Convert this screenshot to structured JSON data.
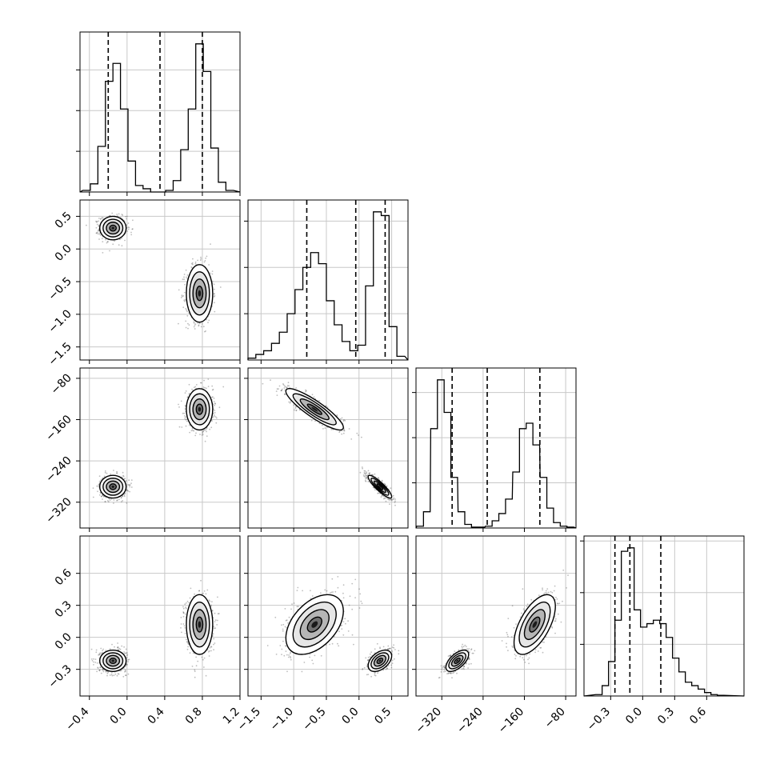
{
  "chart_data": {
    "type": "corner",
    "n_params": 4,
    "colors": {
      "hist": "#000000",
      "grid": "#c8c8c8",
      "points": "#444444",
      "contour": "#000000"
    },
    "params": [
      {
        "range": [
          -0.5,
          1.2
        ],
        "ticks": [
          -0.4,
          0.0,
          0.4,
          0.8,
          1.2
        ],
        "tick_labels": [
          "−0.4",
          "0.0",
          "0.4",
          "0.8",
          "1.2"
        ],
        "quantiles": [
          -0.2,
          0.35,
          0.8
        ],
        "hist": {
          "centers": [
            -0.43,
            -0.35,
            -0.27,
            -0.19,
            -0.11,
            -0.03,
            0.05,
            0.13,
            0.21,
            0.29,
            0.37,
            0.45,
            0.53,
            0.61,
            0.69,
            0.77,
            0.85,
            0.93,
            1.01,
            1.09
          ],
          "counts": [
            0.01,
            0.05,
            0.28,
            0.68,
            0.79,
            0.51,
            0.19,
            0.04,
            0.02,
            0.0,
            0.0,
            0.01,
            0.07,
            0.26,
            0.51,
            0.91,
            0.74,
            0.27,
            0.06,
            0.01
          ]
        },
        "hist_yticks": [
          0.25,
          0.5,
          0.75
        ]
      },
      {
        "range": [
          -1.7,
          0.75
        ],
        "ticks": [
          -1.5,
          -1.0,
          -0.5,
          0.0,
          0.5
        ],
        "tick_labels": [
          "−1.5",
          "−1.0",
          "−0.5",
          "0.0",
          "0.5"
        ],
        "quantiles": [
          -0.8,
          -0.05,
          0.4
        ],
        "hist": {
          "centers": [
            -1.64,
            -1.52,
            -1.4,
            -1.28,
            -1.16,
            -1.04,
            -0.92,
            -0.8,
            -0.68,
            -0.56,
            -0.44,
            -0.32,
            -0.2,
            -0.08,
            0.04,
            0.16,
            0.28,
            0.4,
            0.52,
            0.64
          ],
          "counts": [
            0.01,
            0.03,
            0.05,
            0.09,
            0.15,
            0.25,
            0.38,
            0.5,
            0.58,
            0.52,
            0.32,
            0.19,
            0.1,
            0.05,
            0.08,
            0.4,
            0.8,
            0.78,
            0.18,
            0.02
          ]
        },
        "hist_yticks": [
          0.25,
          0.5,
          0.75
        ]
      },
      {
        "range": [
          -370,
          -60
        ],
        "ticks": [
          -320,
          -240,
          -160,
          -80
        ],
        "tick_labels": [
          "−320",
          "−240",
          "−160",
          "−80"
        ],
        "quantiles": [
          -300,
          -232,
          -130
        ],
        "hist": {
          "centers": [
            -362,
            -349,
            -335,
            -322,
            -309,
            -296,
            -282,
            -269,
            -256,
            -243,
            -229,
            -216,
            -203,
            -190,
            -176,
            -163,
            -150,
            -137,
            -123,
            -110,
            -97,
            -84,
            -71
          ],
          "counts": [
            0.01,
            0.09,
            0.55,
            0.82,
            0.64,
            0.28,
            0.09,
            0.02,
            0.005,
            0.005,
            0.01,
            0.04,
            0.08,
            0.16,
            0.31,
            0.55,
            0.58,
            0.46,
            0.28,
            0.11,
            0.03,
            0.01,
            0.005
          ]
        },
        "hist_yticks": [
          0.25,
          0.5,
          0.75
        ]
      },
      {
        "range": [
          -0.55,
          0.95
        ],
        "ticks": [
          -0.3,
          0.0,
          0.3,
          0.6
        ],
        "tick_labels": [
          "−0.3",
          "0.0",
          "0.3",
          "0.6"
        ],
        "quantiles": [
          -0.26,
          -0.12,
          0.17
        ],
        "hist": {
          "centers": [
            -0.41,
            -0.35,
            -0.29,
            -0.23,
            -0.17,
            -0.11,
            -0.05,
            0.01,
            0.07,
            0.13,
            0.19,
            0.25,
            0.31,
            0.37,
            0.43,
            0.49,
            0.55,
            0.61,
            0.67,
            0.73
          ],
          "counts": [
            0.004,
            0.03,
            0.1,
            0.22,
            0.42,
            0.43,
            0.25,
            0.2,
            0.21,
            0.22,
            0.21,
            0.17,
            0.11,
            0.07,
            0.04,
            0.03,
            0.02,
            0.01,
            0.004,
            0.002
          ]
        },
        "hist_yticks": [
          0.15,
          0.3,
          0.45
        ]
      }
    ],
    "modes": [
      {
        "center": [
          -0.15,
          0.32,
          -290,
          -0.22
        ],
        "sigma": [
          0.07,
          0.09,
          11,
          0.05
        ],
        "weight": 0.5
      },
      {
        "center": [
          0.77,
          -0.68,
          -140,
          0.12
        ],
        "sigma": [
          0.07,
          0.22,
          20,
          0.14
        ],
        "weight": 0.5
      }
    ],
    "correlations": {
      "2-1": -0.88,
      "3-1": 0.45,
      "3-2": 0.6
    }
  }
}
